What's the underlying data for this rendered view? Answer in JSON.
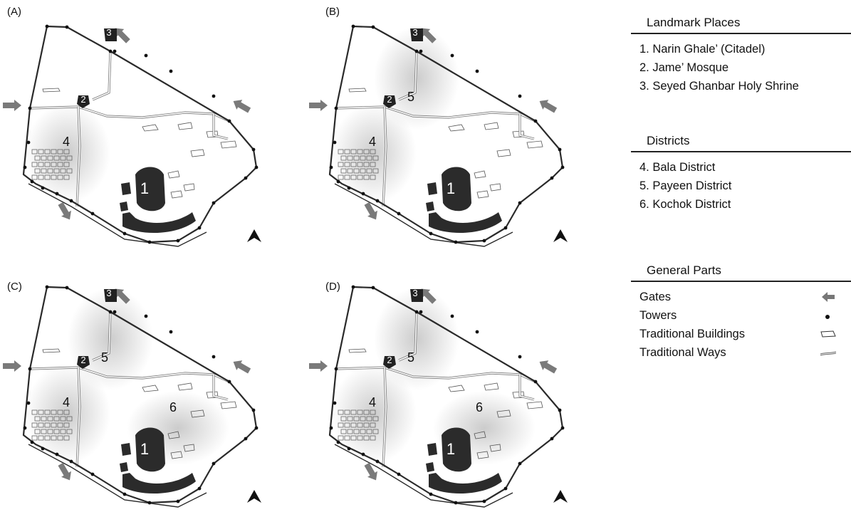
{
  "panels": [
    {
      "label": "(A)",
      "districts": [
        "4"
      ]
    },
    {
      "label": "(B)",
      "districts": [
        "4",
        "5"
      ]
    },
    {
      "label": "(C)",
      "districts": [
        "4",
        "5",
        "6"
      ]
    },
    {
      "label": "(D)",
      "districts": [
        "4",
        "5",
        "6"
      ]
    }
  ],
  "map_labels": {
    "citadel": "1",
    "mosque": "2",
    "shrine": "3",
    "bala": "4",
    "payeen": "5",
    "kochok": "6"
  },
  "landmarks": {
    "title": "Landmark  Places",
    "items": [
      "1. Narin Ghale’ (Citadel)",
      "2. Jame’ Mosque",
      "3. Seyed Ghanbar Holy Shrine"
    ]
  },
  "districts": {
    "title": "Districts",
    "items": [
      "4. Bala District",
      "5. Payeen District",
      "6. Kochok District"
    ]
  },
  "general": {
    "title": "General Parts",
    "items": [
      {
        "label": "Gates",
        "icon": "gate-arrow-icon"
      },
      {
        "label": "Towers",
        "icon": "tower-dot-icon"
      },
      {
        "label": "Traditional Buildings",
        "icon": "building-outline-icon"
      },
      {
        "label": "Traditional Ways",
        "icon": "way-line-icon"
      }
    ]
  },
  "colors": {
    "wall": "#2a2a2a",
    "gate": "#7a7a7a",
    "citadel": "#2b2b2b",
    "district_shade": "#c9c9c9"
  }
}
